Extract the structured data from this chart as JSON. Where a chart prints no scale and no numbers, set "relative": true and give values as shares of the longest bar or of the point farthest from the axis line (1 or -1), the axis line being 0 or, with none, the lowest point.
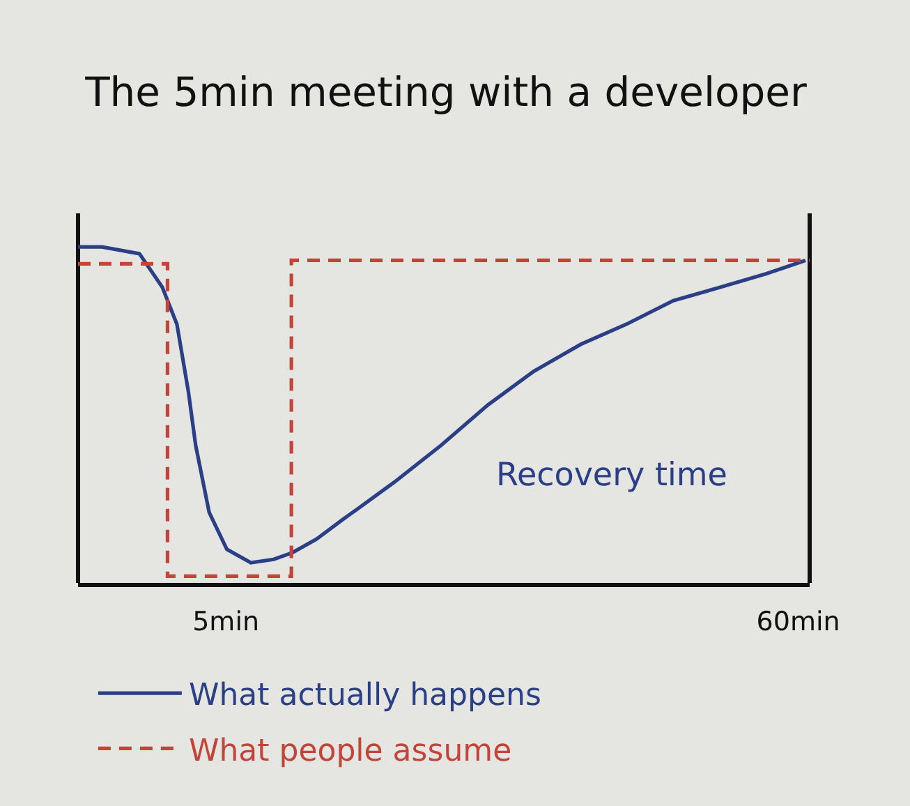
{
  "chart_data": {
    "type": "line",
    "title": "The 5min meeting with a developer",
    "relative": true,
    "xlim": [
      -9.2,
      61.1
    ],
    "xticks": [
      {
        "value": 5,
        "label": "5min"
      },
      {
        "value": 60,
        "label": "60min"
      }
    ],
    "tick_labels": "x",
    "legend": "bottom left",
    "annotations": [
      "Recovery time"
    ],
    "series": [
      {
        "name": "What actually happens",
        "line_style": "solid",
        "color": "#2b3f86",
        "x": [
          -9.2,
          -6.9,
          -3.3,
          -1.1,
          0.3,
          1.4,
          2.1,
          3.4,
          5.1,
          7.4,
          9.6,
          11.4,
          13.7,
          16.3,
          18.1,
          21.2,
          25.7,
          30.2,
          34.6,
          39.1,
          43.5,
          48.0,
          52.5,
          56.9,
          60.7
        ],
        "values": [
          1.0,
          1.0,
          0.98,
          0.88,
          0.77,
          0.57,
          0.41,
          0.21,
          0.1,
          0.06,
          0.07,
          0.09,
          0.13,
          0.19,
          0.23,
          0.3,
          0.41,
          0.53,
          0.63,
          0.71,
          0.77,
          0.84,
          0.88,
          0.92,
          0.96
        ]
      },
      {
        "name": "What people assume",
        "type": "step",
        "line_style": "dashed",
        "color": "#c4443a",
        "x": [
          -9.2,
          -0.6,
          11.3,
          61.1
        ],
        "values": [
          0.95,
          0.02,
          0.96,
          0.96
        ]
      }
    ]
  }
}
